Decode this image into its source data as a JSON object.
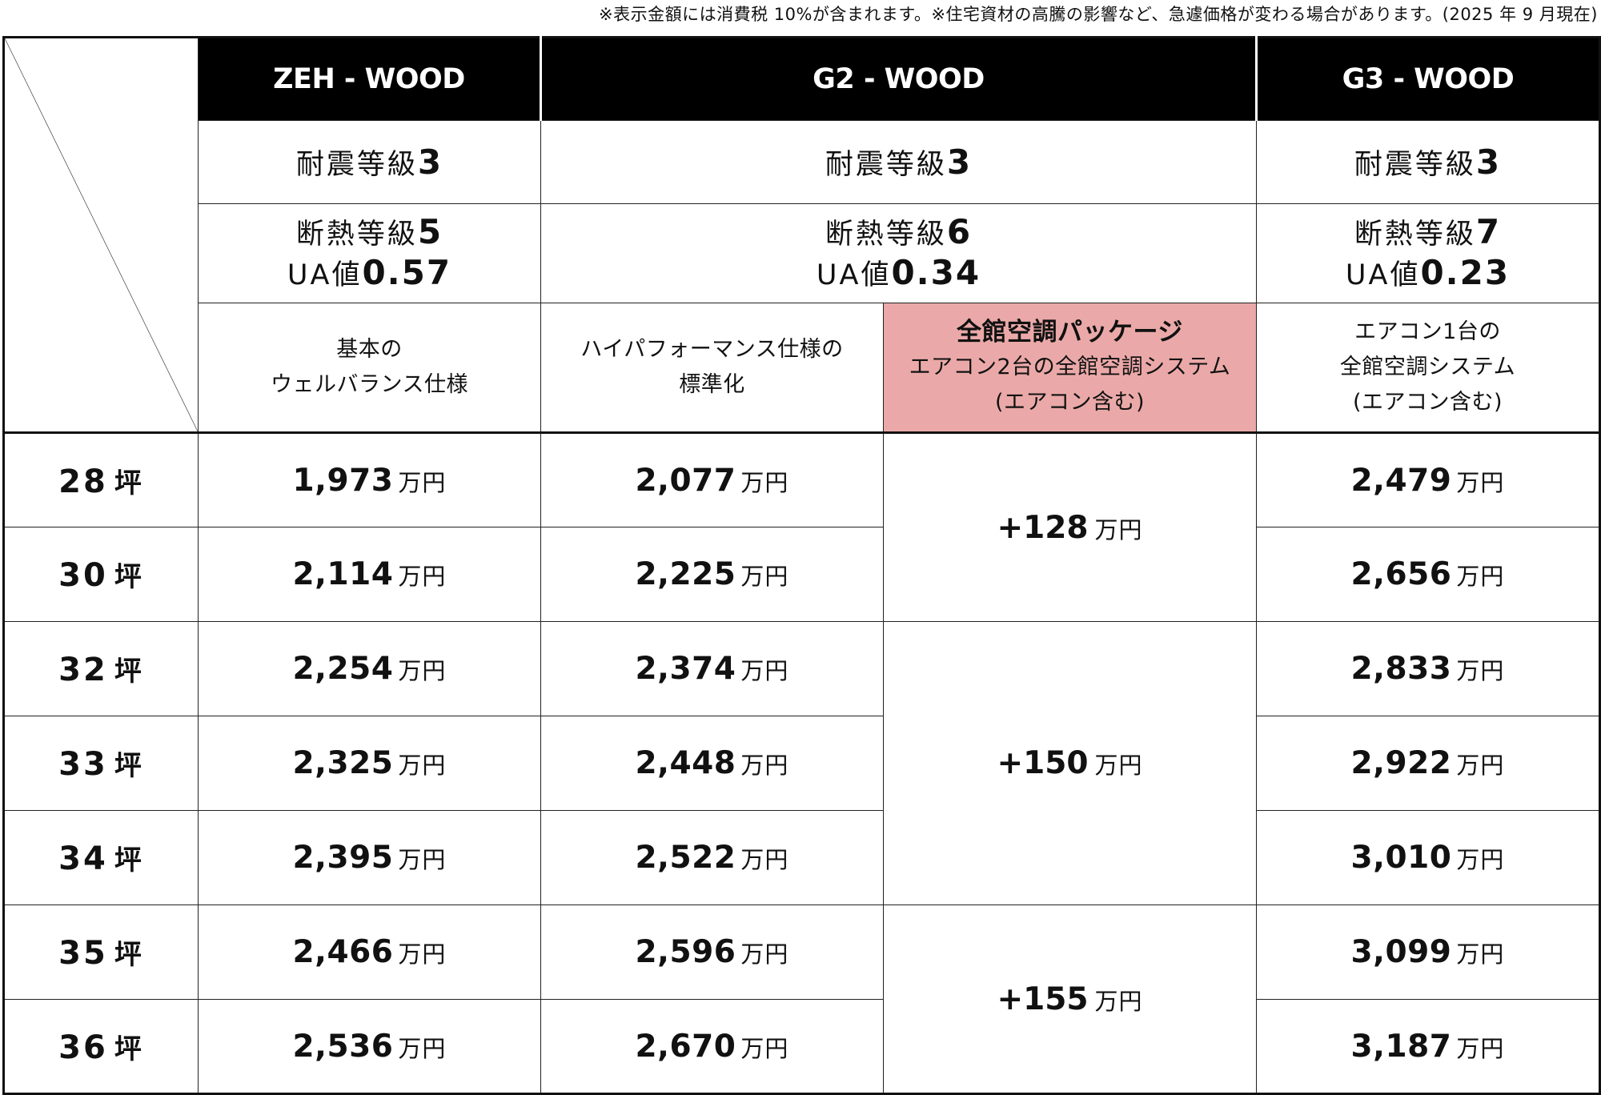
{
  "note": "※表示金額には消費税 10%が含まれます。※住宅資材の高騰の影響など、急遽価格が変わる場合があります。(2025 年 9 月現在)",
  "plans": [
    {
      "name": "ZEH - WOOD",
      "seismic_label": "耐震等級",
      "seismic_value": "3",
      "insulation_label": "断熱等級",
      "insulation_value": "5",
      "ua_label": "UA値",
      "ua_value": "0.57",
      "feature_lines": [
        "基本の",
        "ウェルバランス仕様"
      ]
    },
    {
      "name": "G2 - WOOD",
      "seismic_label": "耐震等級",
      "seismic_value": "3",
      "insulation_label": "断熱等級",
      "insulation_value": "6",
      "ua_label": "UA値",
      "ua_value": "0.34",
      "feature_lines": [
        "ハイパフォーマンス仕様の",
        "標準化"
      ]
    },
    {
      "name": "G3 - WOOD",
      "seismic_label": "耐震等級",
      "seismic_value": "3",
      "insulation_label": "断熱等級",
      "insulation_value": "7",
      "ua_label": "UA値",
      "ua_value": "0.23",
      "feature_lines": [
        "エアコン1台の",
        "全館空調システム",
        "(エアコン含む)"
      ]
    }
  ],
  "package": {
    "title": "全館空調パッケージ",
    "lines": [
      "エアコン2台の全館空調システム",
      "(エアコン含む)"
    ]
  },
  "unit": "万円",
  "tsubo_unit": "坪",
  "rows": [
    {
      "tsubo": "28",
      "zeh": "1,973",
      "g2": "2,077",
      "g3": "2,479"
    },
    {
      "tsubo": "30",
      "zeh": "2,114",
      "g2": "2,225",
      "g3": "2,656"
    },
    {
      "tsubo": "32",
      "zeh": "2,254",
      "g2": "2,374",
      "g3": "2,833"
    },
    {
      "tsubo": "33",
      "zeh": "2,325",
      "g2": "2,448",
      "g3": "2,922"
    },
    {
      "tsubo": "34",
      "zeh": "2,395",
      "g2": "2,522",
      "g3": "3,010"
    },
    {
      "tsubo": "35",
      "zeh": "2,466",
      "g2": "2,596",
      "g3": "3,099"
    },
    {
      "tsubo": "36",
      "zeh": "2,536",
      "g2": "2,670",
      "g3": "3,187"
    }
  ],
  "package_prices": [
    "+128",
    "+150",
    "+155"
  ]
}
